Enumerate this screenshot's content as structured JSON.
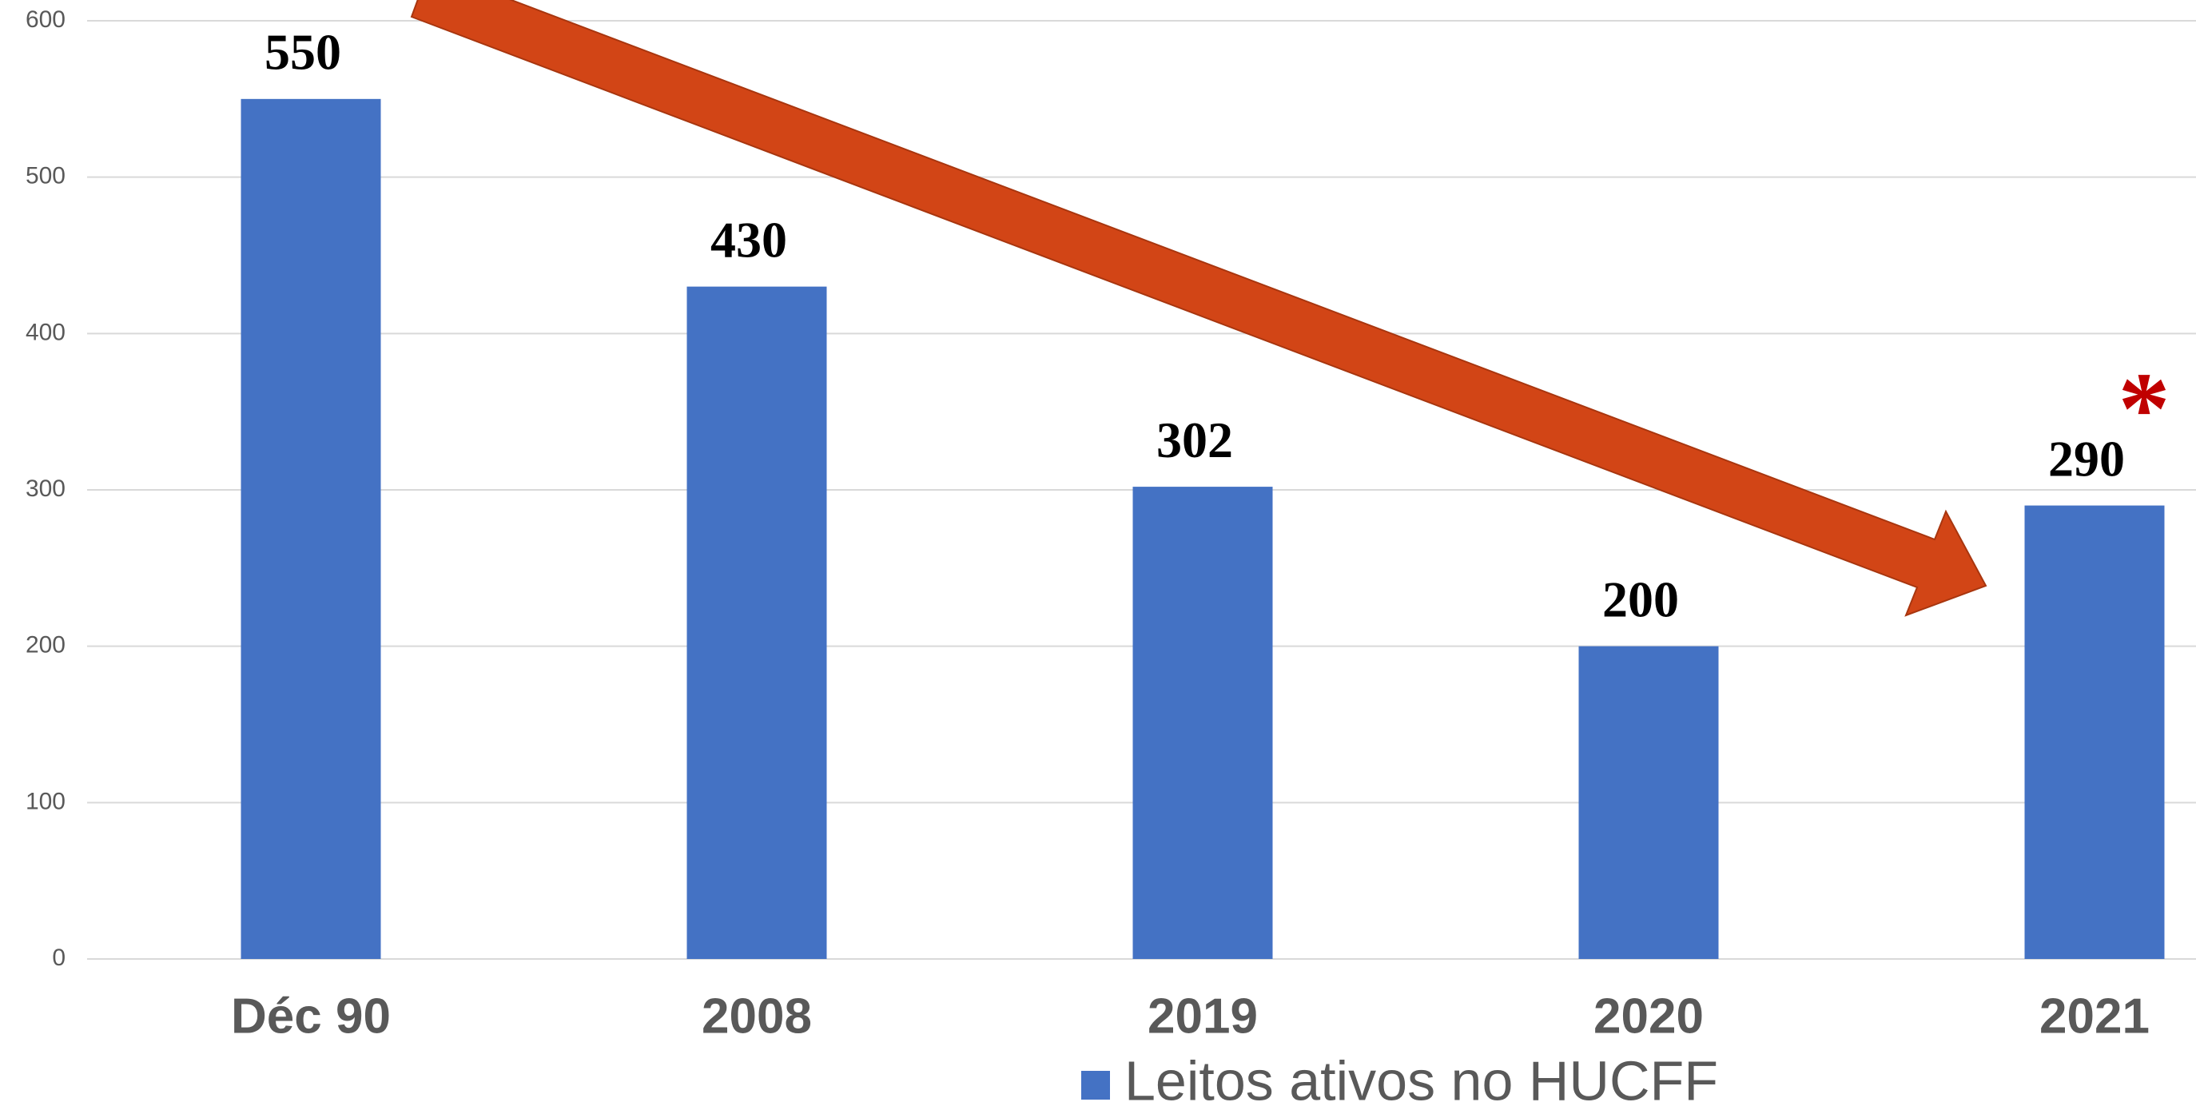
{
  "chart_data": {
    "type": "bar",
    "categories": [
      "Déc 90",
      "2008",
      "2019",
      "2020",
      "2021"
    ],
    "values": [
      550,
      430,
      302,
      200,
      290
    ],
    "color": "#4472c4",
    "ylim": [
      0,
      600
    ],
    "yticks": [
      0,
      100,
      200,
      300,
      400,
      500,
      600
    ],
    "grid": true,
    "legend": "Leitos ativos no HUCFF",
    "annotation": "*"
  }
}
